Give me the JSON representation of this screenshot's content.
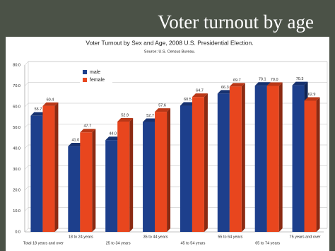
{
  "slide_title": "Voter turnout by age",
  "chart_data": {
    "type": "bar",
    "title": "Voter Turnout by Sex and Age, 2008 U.S. Presidential Election.",
    "subtitle": "Source: U.S. Census Bureau.",
    "categories": [
      "Total 18 years and over",
      "18 to 24 years",
      "25 to 34 years",
      "35 to 44 years",
      "45 to 54 years",
      "55 to 64 years",
      "65 to 74 years",
      "75 years and over"
    ],
    "series": [
      {
        "name": "male",
        "color": "#1d3f8c",
        "values": [
          55.7,
          41.0,
          44.0,
          52.7,
          60.5,
          66.3,
          70.1,
          70.3
        ],
        "value_labels": [
          "55.7",
          "41.0",
          "44.0",
          "52.7",
          "60.5",
          "66.3",
          "70.1",
          "70.3"
        ]
      },
      {
        "name": "female",
        "color": "#e8461e",
        "values": [
          60.4,
          47.7,
          52.9,
          57.6,
          64.7,
          69.7,
          70.0,
          62.9
        ],
        "value_labels": [
          "60.4",
          "47.7",
          "52.9",
          "57.6",
          "64.7",
          "69.7",
          "70.0",
          "62.9"
        ]
      }
    ],
    "ylim": [
      0,
      80
    ],
    "yticks": [
      {
        "value": 0,
        "label": "0.0"
      },
      {
        "value": 10,
        "label": "10.0"
      },
      {
        "value": 20,
        "label": "20.0"
      },
      {
        "value": 30,
        "label": "30.0"
      },
      {
        "value": 40,
        "label": "40.0"
      },
      {
        "value": 50,
        "label": "50.0"
      },
      {
        "value": 60,
        "label": "60.0"
      },
      {
        "value": 70,
        "label": "70.0"
      },
      {
        "value": 80,
        "label": "80.0"
      }
    ],
    "grid": true,
    "legend": "top-left"
  }
}
